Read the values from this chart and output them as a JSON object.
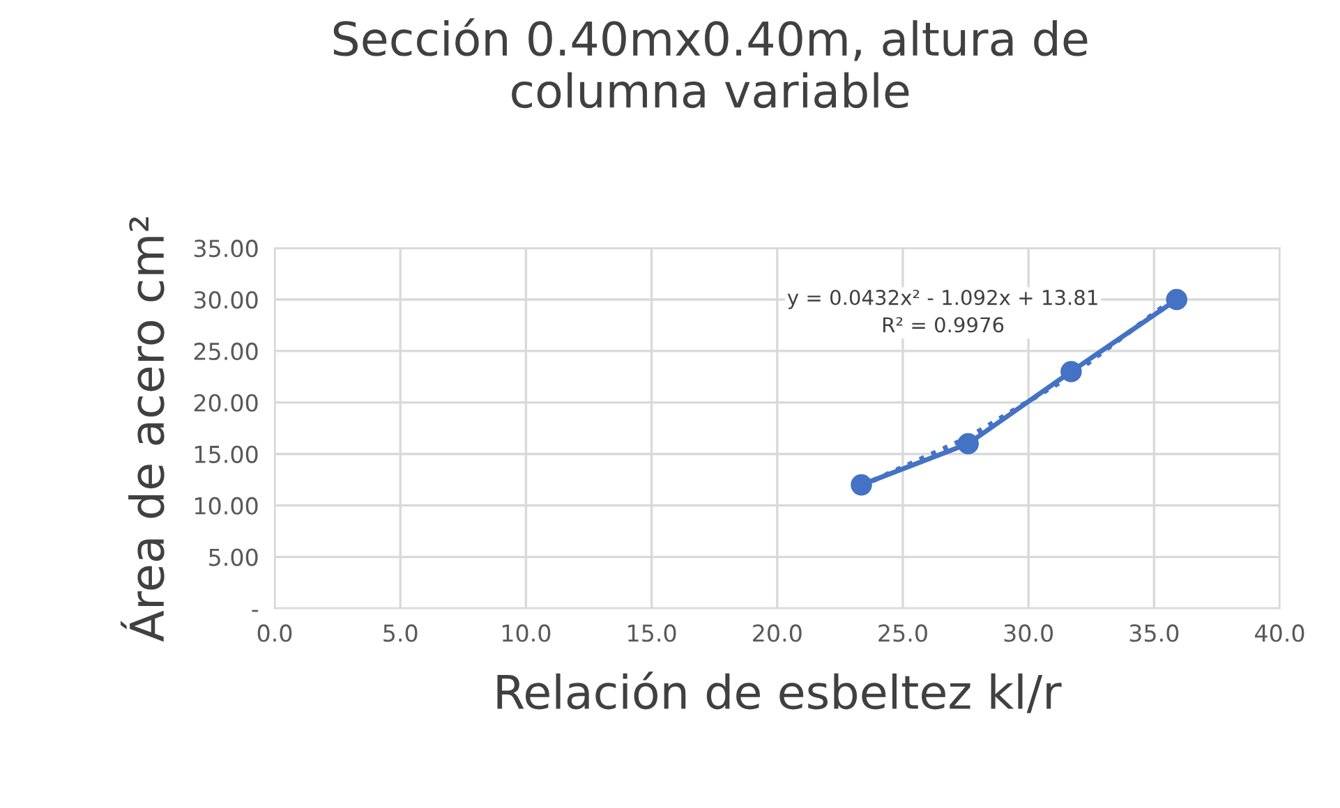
{
  "chart_data": {
    "type": "line",
    "title": "Sección 0.40mx0.40m, altura de\ncolumna variable",
    "xlabel": "Relación de esbeltez kl/r",
    "ylabel": "Área de acero cm²",
    "series": [
      {
        "color": "#4472c4",
        "x": [
          23.35,
          27.6,
          31.7,
          35.9
        ],
        "values": [
          12.0,
          16.0,
          23.0,
          30.0
        ],
        "marker": "circle",
        "line_style": "solid"
      },
      {
        "color": "#4472c4",
        "x": [
          23.35,
          27.6,
          31.7,
          35.9
        ],
        "values": [
          11.9,
          16.6,
          22.6,
          30.3
        ],
        "marker": "none",
        "line_style": "dotted"
      }
    ],
    "annotations": [
      "y = 0.0432x² - 1.092x + 13.81\nR² = 0.9976"
    ],
    "xlim": [
      0,
      40
    ],
    "xticks": [
      {
        "value": 0,
        "label": "0.0"
      },
      {
        "value": 5,
        "label": "5.0"
      },
      {
        "value": 10,
        "label": "10.0"
      },
      {
        "value": 15,
        "label": "15.0"
      },
      {
        "value": 20,
        "label": "20.0"
      },
      {
        "value": 25,
        "label": "25.0"
      },
      {
        "value": 30,
        "label": "30.0"
      },
      {
        "value": 35,
        "label": "35.0"
      },
      {
        "value": 40,
        "label": "40.0"
      }
    ],
    "ylim": [
      0,
      35
    ],
    "yticks": [
      {
        "value": 0,
        "label": "-"
      },
      {
        "value": 5,
        "label": "5.00"
      },
      {
        "value": 10,
        "label": "10.00"
      },
      {
        "value": 15,
        "label": "15.00"
      },
      {
        "value": 20,
        "label": "20.00"
      },
      {
        "value": 25,
        "label": "25.00"
      },
      {
        "value": 30,
        "label": "30.00"
      },
      {
        "value": 35,
        "label": "35.00"
      }
    ],
    "grid": true,
    "legend": false
  }
}
